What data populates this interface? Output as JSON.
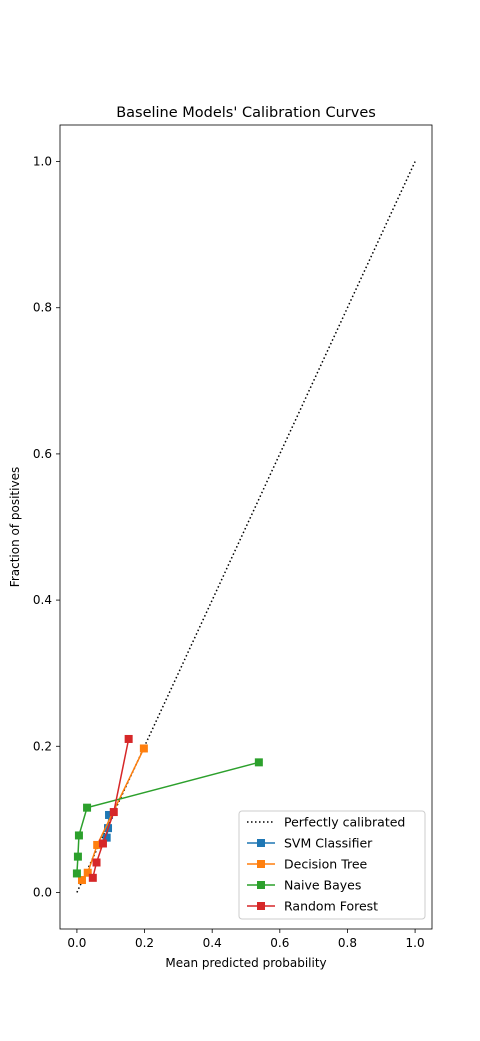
{
  "chart_data": {
    "type": "line",
    "title": "Baseline Models' Calibration Curves",
    "xlabel": "Mean predicted probability",
    "ylabel": "Fraction of positives",
    "xlim": [
      -0.05,
      1.05
    ],
    "ylim": [
      -0.05,
      1.05
    ],
    "x_ticks": [
      0.0,
      0.2,
      0.4,
      0.6,
      0.8,
      1.0
    ],
    "y_ticks": [
      0.0,
      0.2,
      0.4,
      0.6,
      0.8,
      1.0
    ],
    "x_tick_labels": [
      "0.0",
      "0.2",
      "0.4",
      "0.6",
      "0.8",
      "1.0"
    ],
    "y_tick_labels": [
      "0.0",
      "0.2",
      "0.4",
      "0.6",
      "0.8",
      "1.0"
    ],
    "grid": false,
    "legend_position": "lower-right",
    "reference": {
      "name": "Perfectly calibrated",
      "x": [
        0.0,
        1.0
      ],
      "y": [
        0.0,
        1.0
      ],
      "style": "dotted",
      "color": "#000000"
    },
    "series": [
      {
        "name": "SVM Classifier",
        "color": "#1f77b4",
        "marker": "square",
        "x": [
          0.088,
          0.092,
          0.095
        ],
        "y": [
          0.075,
          0.088,
          0.106
        ]
      },
      {
        "name": "Decision Tree",
        "color": "#ff7f0e",
        "marker": "square",
        "x": [
          0.015,
          0.032,
          0.06,
          0.198
        ],
        "y": [
          0.017,
          0.027,
          0.065,
          0.197
        ]
      },
      {
        "name": "Naive Bayes",
        "color": "#2ca02c",
        "marker": "square",
        "x": [
          0.0,
          0.003,
          0.006,
          0.03,
          0.538
        ],
        "y": [
          0.026,
          0.049,
          0.078,
          0.116,
          0.178
        ]
      },
      {
        "name": "Random Forest",
        "color": "#d62728",
        "marker": "square",
        "x": [
          0.047,
          0.058,
          0.077,
          0.109,
          0.153
        ],
        "y": [
          0.02,
          0.041,
          0.067,
          0.11,
          0.21
        ]
      }
    ]
  }
}
